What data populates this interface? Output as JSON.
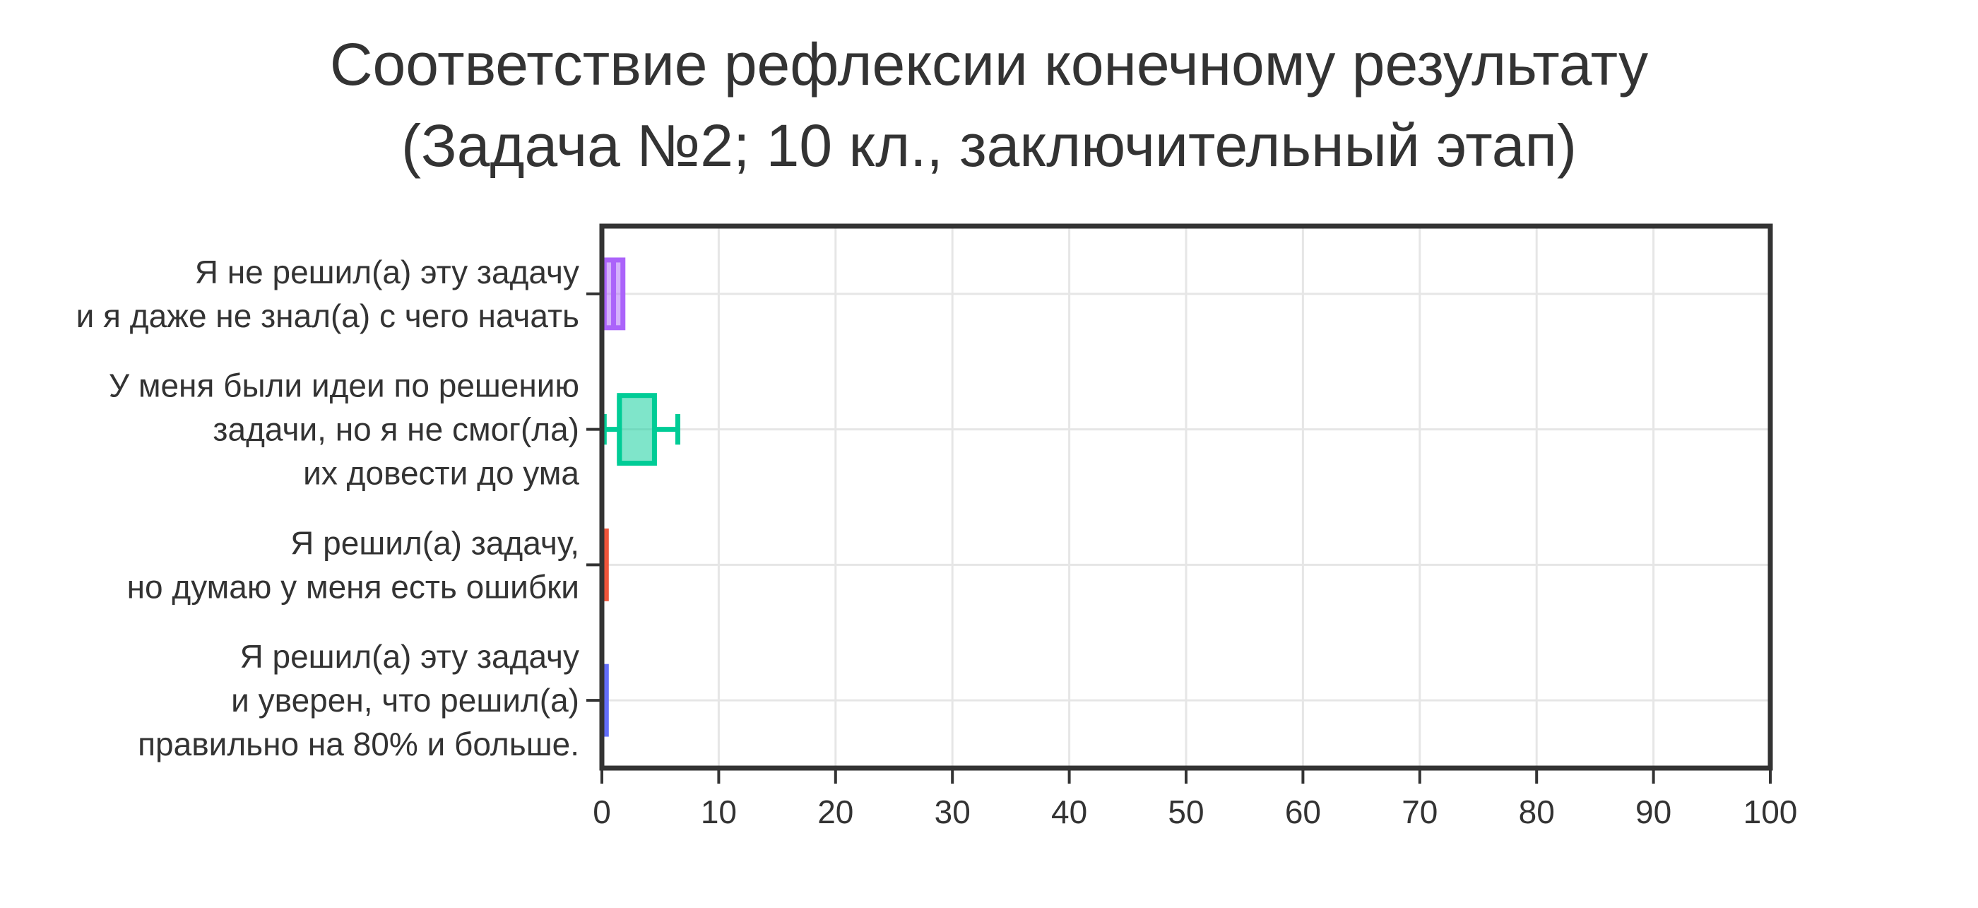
{
  "chart_data": {
    "type": "box",
    "orientation": "horizontal",
    "title": [
      "Соответствие рефлексии конечному результату",
      "(Задача №2; 10 кл., заключительный этап)"
    ],
    "xlabel": "",
    "ylabel": "",
    "xlim": [
      0,
      100
    ],
    "x_ticks": [
      0,
      10,
      20,
      30,
      40,
      50,
      60,
      70,
      80,
      90,
      100
    ],
    "grid": true,
    "legend": false,
    "categories": [
      {
        "label_lines": [
          "Я не решил(а) эту задачу",
          "и я даже не знал(а) с чего начать"
        ],
        "color": "#ab63fa",
        "box": {
          "min": 0.2,
          "q1": 0.2,
          "median": 1.0,
          "q3": 1.8,
          "max": 1.8
        }
      },
      {
        "label_lines": [
          "У меня были идеи по решению",
          "задачи, но я не смог(ла)",
          "их довести до ума"
        ],
        "color": "#00cc96",
        "box": {
          "min": 0.2,
          "q1": 1.5,
          "median": 1.5,
          "q3": 4.5,
          "max": 6.5
        }
      },
      {
        "label_lines": [
          "Я решил(а) задачу,",
          "но думаю у меня есть ошибки"
        ],
        "color": "#ef553b",
        "box": {
          "min": 0.2,
          "q1": 0.2,
          "median": 0.2,
          "q3": 0.2,
          "max": 0.2
        }
      },
      {
        "label_lines": [
          "Я решил(а) эту задачу",
          "и уверен, что решил(а)",
          "правильно на 80% и больше."
        ],
        "color": "#636efa",
        "box": {
          "min": 0.2,
          "q1": 0.2,
          "median": 0.2,
          "q3": 0.2,
          "max": 0.2
        }
      }
    ]
  }
}
